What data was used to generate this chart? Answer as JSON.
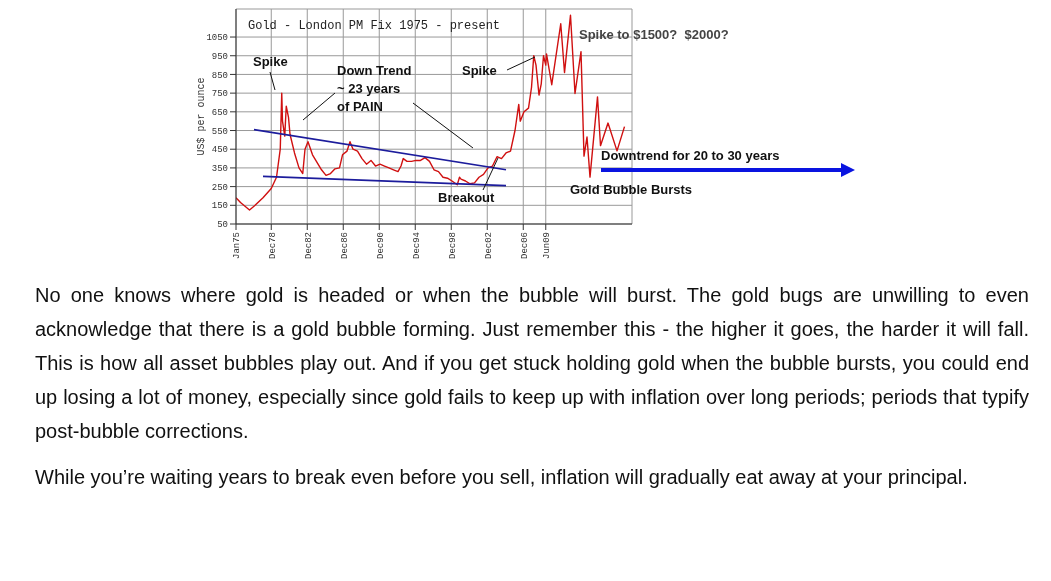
{
  "chart_data": {
    "type": "line",
    "title": "Gold - London PM Fix 1975 - present",
    "ylabel": "US$ per ounce",
    "xlim": [
      "1975-01",
      "2019-01"
    ],
    "ylim": [
      50,
      1200
    ],
    "xticks": [
      {
        "value": "1975-01",
        "label": "Jan75"
      },
      {
        "value": "1978-12",
        "label": "Dec78"
      },
      {
        "value": "1982-12",
        "label": "Dec82"
      },
      {
        "value": "1986-12",
        "label": "Dec86"
      },
      {
        "value": "1990-12",
        "label": "Dec90"
      },
      {
        "value": "1994-12",
        "label": "Dec94"
      },
      {
        "value": "1998-12",
        "label": "Dec98"
      },
      {
        "value": "2002-12",
        "label": "Dec02"
      },
      {
        "value": "2006-12",
        "label": "Dec06"
      },
      {
        "value": "2009-06",
        "label": "Jun09"
      }
    ],
    "yticks": [
      50,
      150,
      250,
      350,
      450,
      550,
      650,
      750,
      850,
      950,
      1050
    ],
    "grid": true,
    "legend": false,
    "marker": "none",
    "line_style": "solid",
    "series": [
      {
        "color": "#d01010",
        "x": [
          "1975-01",
          "1975-07",
          "1976-07",
          "1977-01",
          "1978-01",
          "1978-12",
          "1979-07",
          "1979-12",
          "1980-02",
          "1980-03",
          "1980-06",
          "1980-08",
          "1980-11",
          "1981-01",
          "1981-07",
          "1982-01",
          "1982-06",
          "1982-09",
          "1983-01",
          "1983-07",
          "1984-01",
          "1984-07",
          "1985-01",
          "1985-07",
          "1986-01",
          "1986-07",
          "1986-11",
          "1987-05",
          "1987-09",
          "1988-01",
          "1988-07",
          "1989-01",
          "1989-07",
          "1990-01",
          "1990-07",
          "1991-01",
          "1991-07",
          "1992-01",
          "1992-07",
          "1993-01",
          "1993-05",
          "1993-08",
          "1994-01",
          "1994-07",
          "1995-01",
          "1995-07",
          "1996-01",
          "1996-07",
          "1997-01",
          "1997-07",
          "1998-01",
          "1998-07",
          "1999-01",
          "1999-08",
          "1999-11",
          "2000-01",
          "2000-07",
          "2001-01",
          "2001-07",
          "2002-01",
          "2002-07",
          "2003-01",
          "2003-07",
          "2004-01",
          "2004-07",
          "2005-01",
          "2005-07",
          "2006-01",
          "2006-06",
          "2006-08",
          "2007-01",
          "2007-07",
          "2007-11",
          "2008-02",
          "2008-05",
          "2008-09",
          "2008-12",
          "2009-03",
          "2009-06",
          "2009-07",
          "2010-02",
          "2011-02",
          "2011-07",
          "2012-03",
          "2012-09",
          "2013-05",
          "2013-09",
          "2014-01",
          "2014-05",
          "2015-03",
          "2015-07",
          "2016-05",
          "2017-05",
          "2018-03"
        ],
        "values": [
          190,
          165,
          125,
          145,
          190,
          240,
          300,
          450,
          750,
          600,
          520,
          680,
          620,
          530,
          430,
          350,
          320,
          450,
          490,
          420,
          380,
          340,
          310,
          320,
          345,
          350,
          420,
          440,
          490,
          450,
          440,
          400,
          370,
          390,
          360,
          370,
          360,
          350,
          340,
          330,
          360,
          400,
          385,
          385,
          390,
          390,
          405,
          385,
          340,
          330,
          300,
          295,
          280,
          260,
          300,
          290,
          280,
          265,
          270,
          300,
          315,
          350,
          360,
          410,
          400,
          430,
          440,
          550,
          690,
          600,
          650,
          670,
          780,
          950,
          900,
          740,
          800,
          950,
          900,
          960,
          795,
          1121,
          860,
          1167,
          748,
          972,
          413,
          515,
          301,
          730,
          469,
          590,
          441,
          571
        ]
      },
      {
        "color": "#1c1c9c",
        "x": [
          "1977-01",
          "2005-01"
        ],
        "values": [
          555,
          340
        ]
      },
      {
        "color": "#1c1c9c",
        "x": [
          "1978-01",
          "2005-01"
        ],
        "values": [
          305,
          255
        ]
      }
    ],
    "annotations": [
      "Spike",
      "Down Trend\n~ 23 years\nof PAIN",
      "Spike",
      "Breakout",
      "Spike to $1500?  $2000?",
      "Downtrend for 20 to 30 years",
      "Gold Bubble Bursts",
      "No one knows where gold is headed or when the bubble will burst. The gold bugs are unwilling to even acknowledge that there is a gold bubble forming. Just remember this - the higher it goes, the harder it will fall. This is how all asset bubbles play out. And if you get stuck holding gold when the bubble bursts, you could end up losing a lot of money, especially since gold fails to keep up with inflation over long periods; periods that typify post-bubble corrections.",
      "While you’re waiting years to break even before you sell, inflation will gradually eat away at your principal."
    ]
  }
}
